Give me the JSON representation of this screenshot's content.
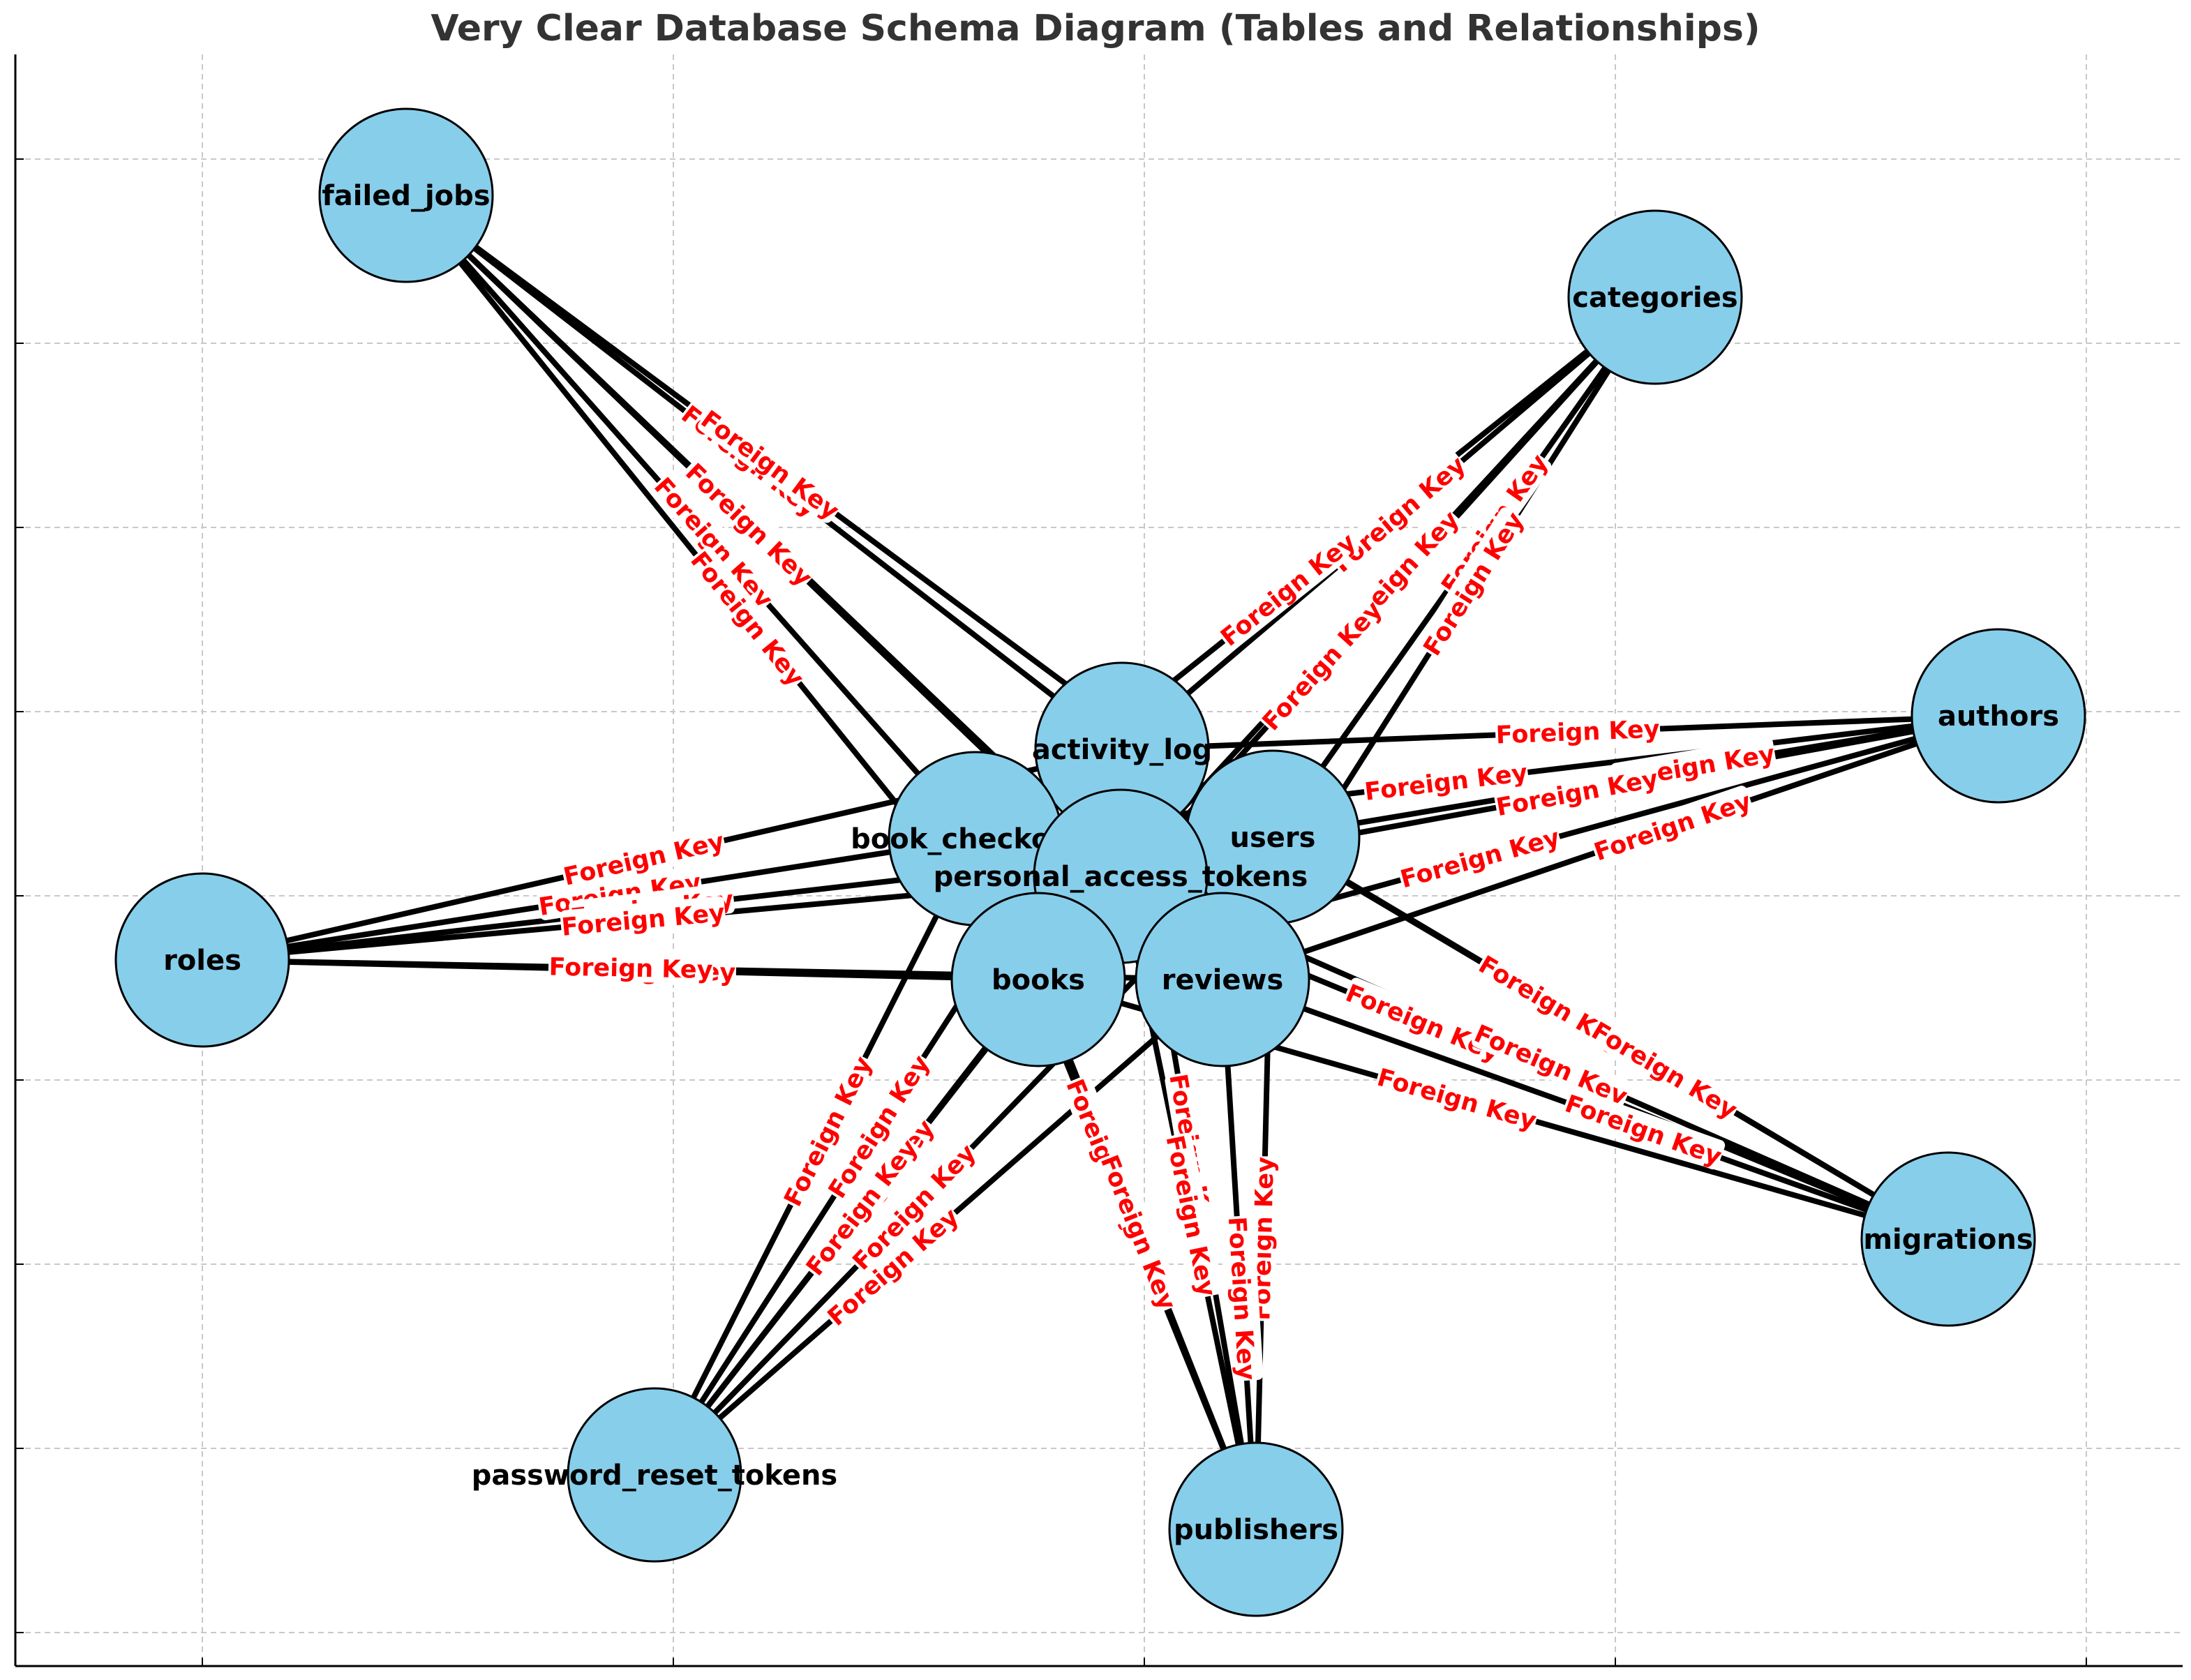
{
  "title": "Very Clear Database Schema Diagram (Tables and Relationships)",
  "edge_label": "Foreign Key",
  "colors": {
    "node_fill": "#87CEEB",
    "node_stroke": "#000000",
    "edge": "#000000",
    "edge_label": "#FF0000",
    "grid": "#c8c8c8",
    "title": "#333333"
  },
  "tables": [
    "failed_jobs",
    "categories",
    "authors",
    "roles",
    "activity_log",
    "book_checkouts",
    "users",
    "personal_access_tokens",
    "books",
    "reviews",
    "migrations",
    "password_reset_tokens",
    "publishers"
  ]
}
